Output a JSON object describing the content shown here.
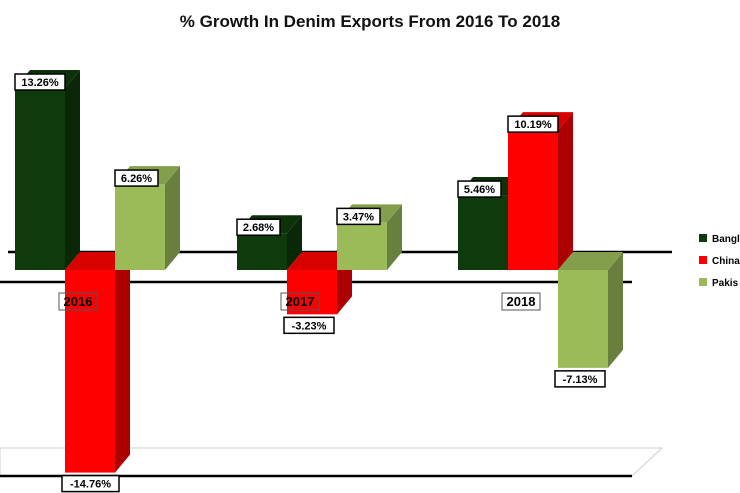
{
  "chart_data": {
    "type": "bar",
    "title": "% Growth In Denim Exports From 2016 To 2018",
    "categories": [
      "2016",
      "2017",
      "2018"
    ],
    "series": [
      {
        "name": "Bangladesh",
        "legend_label": "Bangl",
        "color": "#0f3b0c",
        "values": [
          13.26,
          2.68,
          5.46
        ],
        "labels": [
          "13.26%",
          "2.68%",
          "5.46%"
        ]
      },
      {
        "name": "China",
        "legend_label": "China",
        "color": "#ff0000",
        "values": [
          -14.76,
          -3.23,
          10.19
        ],
        "labels": [
          "-14.76%",
          "-3.23%",
          "10.19%"
        ]
      },
      {
        "name": "Pakistan",
        "legend_label": "Pakis",
        "color": "#9bbb59",
        "values": [
          6.26,
          3.47,
          -7.13
        ],
        "labels": [
          "6.26%",
          "3.47%",
          "-7.13%"
        ]
      }
    ],
    "xlabel": "",
    "ylabel": "",
    "ylim": [
      -15,
      14
    ],
    "legend_position": "right",
    "grid": false
  }
}
